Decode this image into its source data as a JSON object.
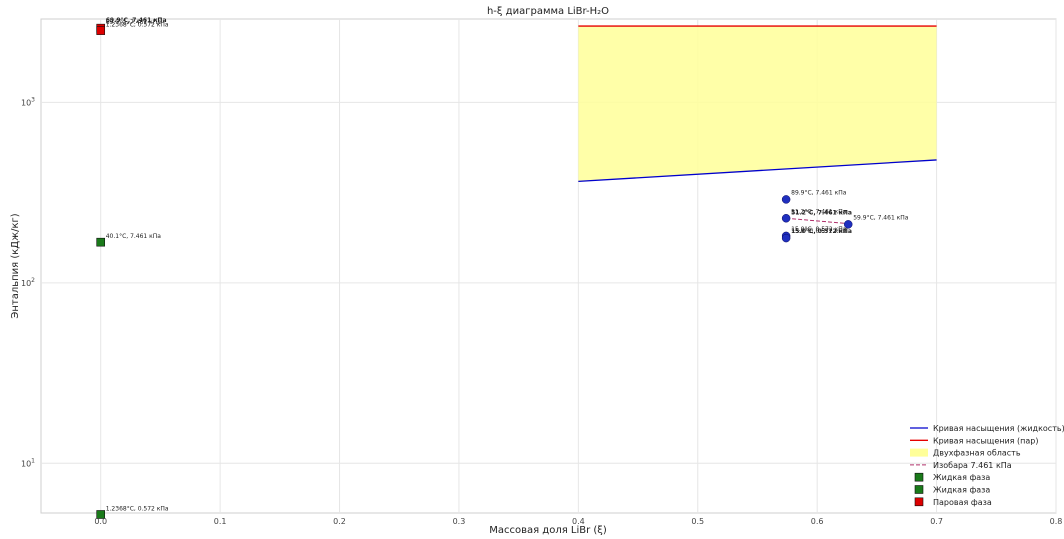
{
  "chart_data": {
    "type": "scatter",
    "title": "h-ξ диаграмма LiBr-H₂O",
    "xlabel": "Массовая доля LiBr (ξ)",
    "ylabel": "Энтальпия (кДж/кг)",
    "xlim": [
      -0.05,
      0.8
    ],
    "ylim": [
      5.3,
      2900
    ],
    "yscale": "log",
    "grid": true,
    "legend_position": "lower right",
    "x_ticks": [
      "0.0",
      "0.1",
      "0.2",
      "0.3",
      "0.4",
      "0.5",
      "0.6",
      "0.7",
      "0.8"
    ],
    "y_ticks": [
      {
        "value": 10,
        "base": "10",
        "exp": "1"
      },
      {
        "value": 100,
        "base": "10",
        "exp": "2"
      },
      {
        "value": 1000,
        "base": "10",
        "exp": "3"
      }
    ],
    "series": [
      {
        "name": "Кривая насыщения (жидкость)",
        "kind": "line",
        "color": "#0000cc",
        "x": [
          0.4,
          0.7
        ],
        "y": [
          365,
          480
        ]
      },
      {
        "name": "Кривая насыщения (пар)",
        "kind": "line",
        "color": "#e60000",
        "x": [
          0.4,
          0.7
        ],
        "y": [
          2650,
          2650
        ]
      },
      {
        "name": "Двухфазная область",
        "kind": "area",
        "color": "#ffff99"
      },
      {
        "name": "Изобара 7.461 кПа",
        "kind": "dashed",
        "color": "#b0306a",
        "x": [
          0.574,
          0.626
        ],
        "y": [
          228,
          213
        ]
      },
      {
        "name": "Жидкая фаза",
        "kind": "square",
        "color": "#1a7a1a",
        "points": [
          {
            "x": 0.0,
            "y": 168,
            "label": "40.1°C, 7.461 кПа"
          }
        ]
      },
      {
        "name": "Жидкая фаза",
        "kind": "square",
        "color": "#1a7a1a",
        "points": [
          {
            "x": 0.0,
            "y": 5.2,
            "label": "1.2368°C, 0.572 кПа"
          }
        ]
      },
      {
        "name": "Паровая фаза",
        "kind": "square",
        "color": "#dd0000",
        "points": [
          {
            "x": 0.0,
            "y": 2580,
            "label": "69.9°C, 7.461 кПа"
          },
          {
            "x": 0.0,
            "y": 2500,
            "label": "1.2368°C, 0.572 кПа"
          }
        ]
      }
    ],
    "solution_points": {
      "color": "#1f2fbf",
      "points": [
        {
          "x": 0.574,
          "y": 290,
          "label": "89.9°C, 7.461 кПа"
        },
        {
          "x": 0.574,
          "y": 228,
          "label": "51.2°C, 7.461 кПа"
        },
        {
          "x": 0.626,
          "y": 211,
          "label": "59.9°C, 7.461 кПа"
        },
        {
          "x": 0.574,
          "y": 182,
          "label": "15.0°C, 0.572 кПа"
        },
        {
          "x": 0.574,
          "y": 177,
          "label": "15.0°C, 0.572 кПа"
        }
      ]
    },
    "overlap_labels": [
      {
        "x": 0.0,
        "y": 2650,
        "label": "69.9°C, 7.461 кПа"
      },
      {
        "x": 0.574,
        "y": 228,
        "label": "51.2°C, 7.461 кПа"
      },
      {
        "x": 0.574,
        "y": 180,
        "label": "15.0°C, 0.572 кПа"
      }
    ]
  }
}
